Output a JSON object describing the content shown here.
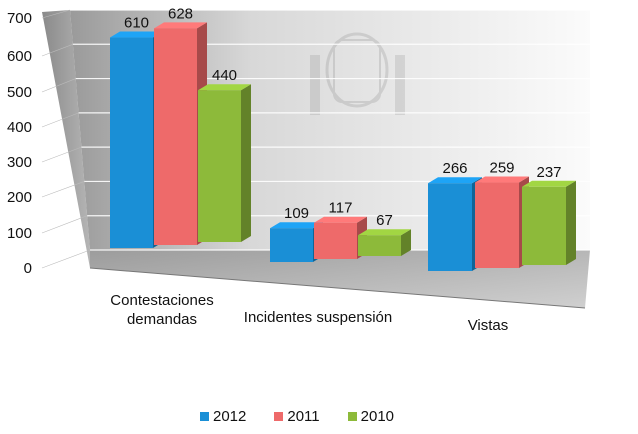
{
  "chart_data": {
    "type": "bar",
    "categories": [
      "Contestaciones demandas",
      "Incidentes suspensión",
      "Vistas"
    ],
    "category_label_lines": [
      [
        "Contestaciones",
        "demandas"
      ],
      [
        "Incidentes suspensión"
      ],
      [
        "Vistas"
      ]
    ],
    "series": [
      {
        "name": "2012",
        "values": [
          610,
          109,
          266
        ],
        "color": "#1a8fd6"
      },
      {
        "name": "2011",
        "values": [
          628,
          117,
          259
        ],
        "color": "#ee6a6a"
      },
      {
        "name": "2010",
        "values": [
          440,
          67,
          237
        ],
        "color": "#8dba3a"
      }
    ],
    "ylim": [
      0,
      700
    ],
    "yticks": [
      "0",
      "100",
      "200",
      "300",
      "400",
      "500",
      "600",
      "700"
    ],
    "grid": true,
    "legend": "bottom",
    "style": "3d-clustered-column"
  }
}
